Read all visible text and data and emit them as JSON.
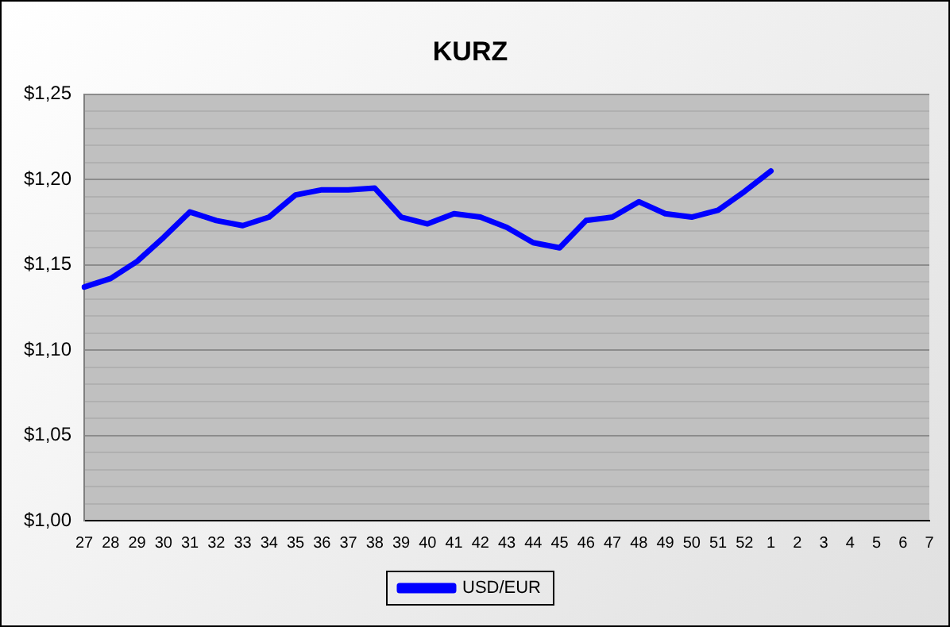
{
  "chart_data": {
    "type": "line",
    "title": "KURZ",
    "categories": [
      "27",
      "28",
      "29",
      "30",
      "31",
      "32",
      "33",
      "34",
      "35",
      "36",
      "37",
      "38",
      "39",
      "40",
      "41",
      "42",
      "43",
      "44",
      "45",
      "46",
      "47",
      "48",
      "49",
      "50",
      "51",
      "52",
      "1",
      "2",
      "3",
      "4",
      "5",
      "6",
      "7"
    ],
    "series": [
      {
        "name": "USD/EUR",
        "color": "#0000ff",
        "values": [
          1.137,
          1.142,
          1.152,
          1.166,
          1.181,
          1.176,
          1.173,
          1.178,
          1.191,
          1.194,
          1.194,
          1.195,
          1.178,
          1.174,
          1.18,
          1.178,
          1.172,
          1.163,
          1.16,
          1.176,
          1.178,
          1.187,
          1.18,
          1.178,
          1.182,
          1.193,
          1.205,
          null,
          null,
          null,
          null,
          null,
          null
        ]
      }
    ],
    "ylim": [
      1.0,
      1.25
    ],
    "yticks": [
      {
        "value": 1.0,
        "label": "$1,00"
      },
      {
        "value": 1.01,
        "label": null
      },
      {
        "value": 1.02,
        "label": null
      },
      {
        "value": 1.03,
        "label": null
      },
      {
        "value": 1.04,
        "label": null
      },
      {
        "value": 1.05,
        "label": "$1,05"
      },
      {
        "value": 1.06,
        "label": null
      },
      {
        "value": 1.07,
        "label": null
      },
      {
        "value": 1.08,
        "label": null
      },
      {
        "value": 1.09,
        "label": null
      },
      {
        "value": 1.1,
        "label": "$1,10"
      },
      {
        "value": 1.11,
        "label": null
      },
      {
        "value": 1.12,
        "label": null
      },
      {
        "value": 1.13,
        "label": null
      },
      {
        "value": 1.14,
        "label": null
      },
      {
        "value": 1.15,
        "label": "$1,15"
      },
      {
        "value": 1.16,
        "label": null
      },
      {
        "value": 1.17,
        "label": null
      },
      {
        "value": 1.18,
        "label": null
      },
      {
        "value": 1.19,
        "label": null
      },
      {
        "value": 1.2,
        "label": "$1,20"
      },
      {
        "value": 1.21,
        "label": null
      },
      {
        "value": 1.22,
        "label": null
      },
      {
        "value": 1.23,
        "label": null
      },
      {
        "value": 1.24,
        "label": null
      },
      {
        "value": 1.25,
        "label": "$1,25"
      }
    ],
    "grid": "y",
    "legend": "bottom",
    "marker": "none",
    "line_style": "solid"
  }
}
